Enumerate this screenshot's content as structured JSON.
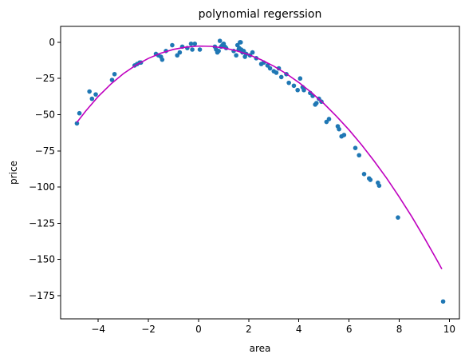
{
  "chart_data": {
    "type": "scatter",
    "title": "polynomial regerssion",
    "xlabel": "area",
    "ylabel": "price",
    "xlim": [
      -5.5,
      10.4
    ],
    "ylim": [
      -191,
      11
    ],
    "xticks": [
      -4,
      -2,
      0,
      2,
      4,
      6,
      8,
      10
    ],
    "yticks": [
      0,
      -25,
      -50,
      -75,
      -100,
      -125,
      -150,
      -175
    ],
    "xtick_labels": [
      "−4",
      "−2",
      "0",
      "2",
      "4",
      "6",
      "8",
      "10"
    ],
    "ytick_labels": [
      "0",
      "−25",
      "−50",
      "−75",
      "−100",
      "−125",
      "−150",
      "−175"
    ],
    "grid": false,
    "colors": {
      "points": "#1f77b4",
      "fit_line": "#bf00bf"
    },
    "series": [
      {
        "kind": "scatter",
        "x": [
          -4.85,
          -4.75,
          -4.35,
          -4.25,
          -4.1,
          -3.45,
          -3.35,
          -2.55,
          -2.45,
          -2.35,
          -2.3,
          -1.7,
          -1.6,
          -1.5,
          -1.45,
          -1.3,
          -1.05,
          -0.85,
          -0.75,
          -0.65,
          -0.45,
          -0.3,
          -0.25,
          -0.15,
          0.05,
          0.65,
          0.7,
          0.75,
          0.8,
          0.85,
          0.9,
          0.95,
          1.0,
          1.05,
          1.1,
          1.4,
          1.5,
          1.55,
          1.6,
          1.62,
          1.65,
          1.68,
          1.7,
          1.75,
          1.8,
          1.85,
          1.9,
          2.05,
          2.15,
          2.3,
          2.5,
          2.6,
          2.75,
          2.85,
          3.0,
          3.1,
          3.2,
          3.3,
          3.5,
          3.6,
          3.8,
          3.95,
          4.05,
          4.15,
          4.2,
          4.45,
          4.55,
          4.65,
          4.7,
          4.8,
          4.9,
          5.1,
          5.2,
          5.55,
          5.6,
          5.7,
          5.8,
          6.25,
          6.4,
          6.6,
          6.8,
          6.85,
          7.15,
          7.2,
          7.95,
          9.75
        ],
        "y": [
          -56,
          -49,
          -34,
          -39,
          -36,
          -26,
          -22,
          -16,
          -15,
          -14,
          -14,
          -8,
          -9,
          -10,
          -12,
          -6,
          -2,
          -9,
          -7,
          -3,
          -4,
          -1,
          -5,
          -1,
          -5,
          -3,
          -5,
          -7,
          -6,
          1,
          -3,
          -2,
          -1,
          -3,
          -4,
          -6,
          -9,
          -2,
          -5,
          -4,
          0,
          0,
          -5,
          -7,
          -6,
          -10,
          -8,
          -9,
          -7,
          -11,
          -15,
          -14,
          -16,
          -18,
          -20,
          -21,
          -18,
          -24,
          -22,
          -28,
          -30,
          -33,
          -25,
          -31,
          -33,
          -35,
          -37,
          -43,
          -42,
          -39,
          -41,
          -55,
          -53,
          -58,
          -60,
          -65,
          -64,
          -73,
          -78,
          -91,
          -94,
          -95,
          -97,
          -99,
          -121,
          -179
        ]
      },
      {
        "kind": "line",
        "x": [
          -4.85,
          -4.5,
          -4.0,
          -3.5,
          -3.0,
          -2.5,
          -2.0,
          -1.5,
          -1.0,
          -0.5,
          0.0,
          0.5,
          1.0,
          1.5,
          2.0,
          2.5,
          3.0,
          3.5,
          4.0,
          4.5,
          5.0,
          5.5,
          6.0,
          6.5,
          7.0,
          7.5,
          8.0,
          8.5,
          9.0,
          9.5,
          9.7
        ],
        "y": [
          -55.3,
          -47.5,
          -37.4,
          -28.9,
          -21.7,
          -15.8,
          -11.1,
          -7.5,
          -4.9,
          -3.3,
          -2.6,
          -2.8,
          -3.9,
          -5.8,
          -8.5,
          -12.1,
          -16.5,
          -21.7,
          -27.8,
          -34.7,
          -42.4,
          -51.1,
          -60.5,
          -70.8,
          -82.0,
          -93.9,
          -106.8,
          -120.4,
          -135.0,
          -150.3,
          -156.6
        ]
      }
    ]
  }
}
